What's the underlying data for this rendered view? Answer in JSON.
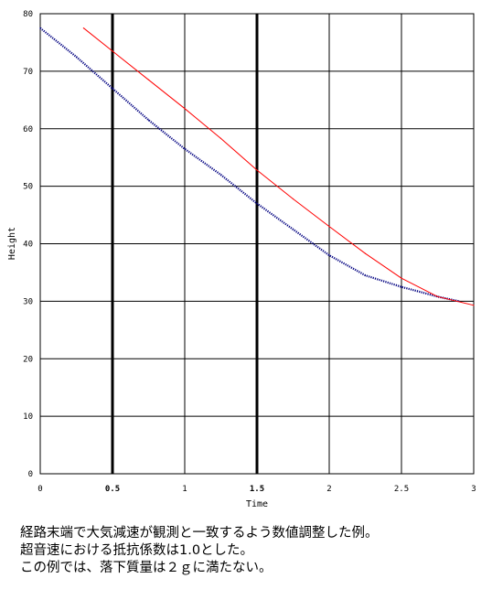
{
  "chart_data": {
    "type": "line",
    "title": "",
    "xlabel": "Time",
    "ylabel": "Height",
    "xlim": [
      0,
      3
    ],
    "ylim": [
      0,
      80
    ],
    "grid": true,
    "xticks": [
      "0",
      "0.5",
      "1",
      "1.5",
      "2",
      "2.5",
      "3"
    ],
    "yticks": [
      "0",
      "10",
      "20",
      "30",
      "40",
      "50",
      "60",
      "70",
      "80"
    ],
    "bold_x_gridlines": [
      0.5,
      1.5
    ],
    "series": [
      {
        "color": "#000080",
        "style": "dotted",
        "x": [
          0,
          0.25,
          0.5,
          0.75,
          1.0,
          1.25,
          1.5,
          1.75,
          2.0,
          2.25,
          2.5,
          2.75,
          2.9
        ],
        "y": [
          77.5,
          72.5,
          67.0,
          61.5,
          56.5,
          52.0,
          47.0,
          42.5,
          38.0,
          34.5,
          32.5,
          30.8,
          30.0
        ]
      },
      {
        "color": "#ff0000",
        "style": "solid",
        "x": [
          0.3,
          0.5,
          0.75,
          1.0,
          1.25,
          1.5,
          1.75,
          2.0,
          2.25,
          2.5,
          2.75,
          3.0
        ],
        "y": [
          77.5,
          73.5,
          68.5,
          63.5,
          58.3,
          52.8,
          47.8,
          43.0,
          38.3,
          34.0,
          30.8,
          29.3
        ]
      }
    ]
  },
  "caption": {
    "line1": "経路末端で大気減速が観測と一致するよう数値調整した例。",
    "line2": "超音速における抵抗係数は1.0とした。",
    "line3": "この例では、落下質量は２ｇに満たない。"
  }
}
